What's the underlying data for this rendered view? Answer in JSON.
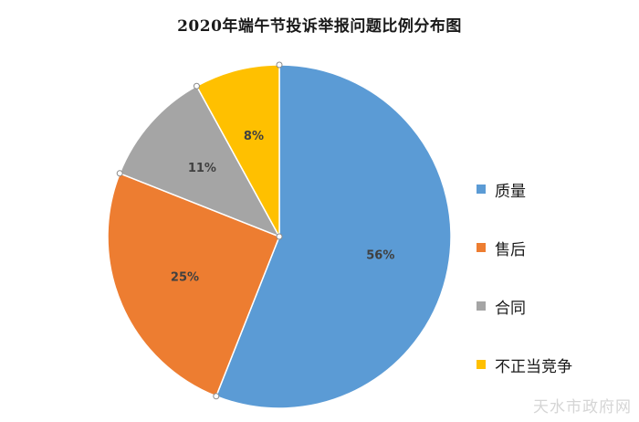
{
  "chart_data": {
    "type": "pie",
    "title": "2020年端午节投诉举报问题比例分布图",
    "categories": [
      "质量",
      "售后",
      "合同",
      "不正当竞争"
    ],
    "values": [
      56,
      25,
      11,
      8
    ],
    "data_labels": [
      "56%",
      "25%",
      "11%",
      "8%"
    ],
    "colors": [
      "#5b9bd5",
      "#ed7d31",
      "#a5a5a5",
      "#ffc000"
    ],
    "start_angle": "12 o'clock",
    "direction": "clockwise",
    "legend_position": "right"
  },
  "watermark": "天水市政府网"
}
